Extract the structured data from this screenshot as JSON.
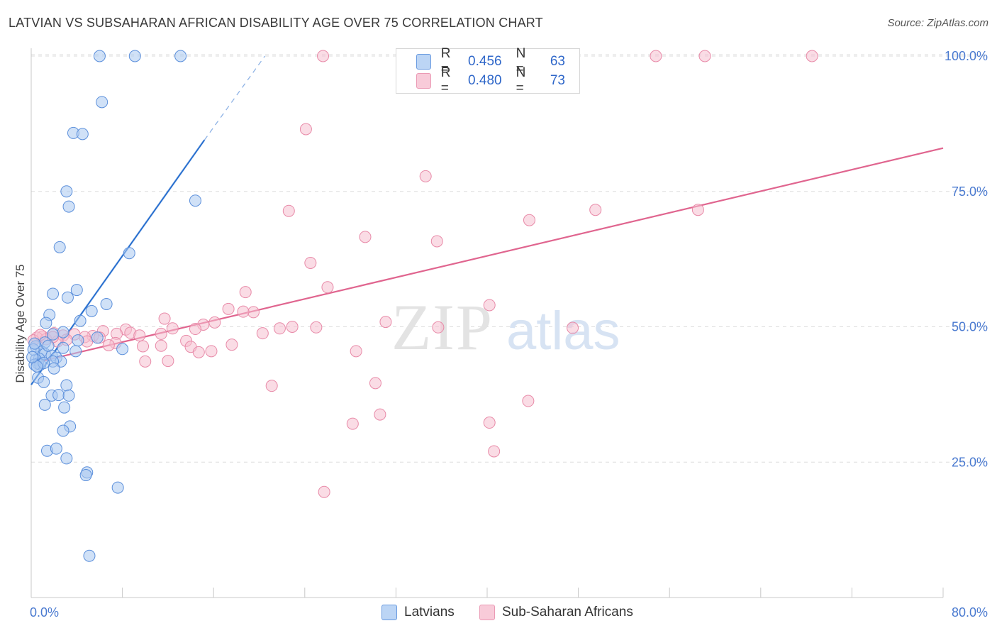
{
  "header": {
    "title": "LATVIAN VS SUBSAHARAN AFRICAN DISABILITY AGE OVER 75 CORRELATION CHART",
    "source": "Source: ZipAtlas.com"
  },
  "watermark": {
    "zip": "ZIP",
    "atlas": "atlas"
  },
  "legend_stats": [
    {
      "r_label": "R =",
      "r_value": "0.456",
      "n_label": "N =",
      "n_value": "63"
    },
    {
      "r_label": "R =",
      "r_value": "0.480",
      "n_label": "N =",
      "n_value": "73"
    }
  ],
  "bottom_legend": [
    "Latvians",
    "Sub-Saharan Africans"
  ],
  "colors": {
    "latvian_fill": "#a9c8f0",
    "latvian_stroke": "#5b8fdb",
    "latvian_line": "#2e73d0",
    "african_fill": "#f6bfd0",
    "african_stroke": "#e88aa8",
    "african_line": "#e0658f",
    "tick_text": "#4a7ad0",
    "grid": "#dedede"
  },
  "chart_data": {
    "type": "scatter",
    "title": "LATVIAN VS SUBSAHARAN AFRICAN DISABILITY AGE OVER 75 CORRELATION CHART",
    "xlabel": "",
    "ylabel": "Disability Age Over 75",
    "xlim": [
      0,
      80
    ],
    "ylim": [
      0,
      102
    ],
    "x_tick_labels": [
      "0.0%",
      "80.0%"
    ],
    "y_ticks": [
      25,
      50,
      75,
      100
    ],
    "y_tick_labels": [
      "25.0%",
      "50.0%",
      "75.0%",
      "100.0%"
    ],
    "grid": "horizontal dashed",
    "legend_position": "top-center",
    "series": [
      {
        "name": "Latvians",
        "trend": {
          "x": [
            0.0,
            15.2
          ],
          "y": [
            39.3,
            84.5
          ],
          "dash_to": [
            20.5,
            100.0
          ]
        },
        "points": [
          [
            6.0,
            100
          ],
          [
            9.1,
            100
          ],
          [
            13.1,
            100
          ],
          [
            6.2,
            91.5
          ],
          [
            3.7,
            85.8
          ],
          [
            4.5,
            85.6
          ],
          [
            3.1,
            75.0
          ],
          [
            3.3,
            72.2
          ],
          [
            14.4,
            73.3
          ],
          [
            2.5,
            64.7
          ],
          [
            8.6,
            63.6
          ],
          [
            4.0,
            56.8
          ],
          [
            1.9,
            56.1
          ],
          [
            3.2,
            55.4
          ],
          [
            6.6,
            54.2
          ],
          [
            1.6,
            52.2
          ],
          [
            5.3,
            52.9
          ],
          [
            4.3,
            51.1
          ],
          [
            1.3,
            50.7
          ],
          [
            2.8,
            49.0
          ],
          [
            1.9,
            48.6
          ],
          [
            5.8,
            48.0
          ],
          [
            4.1,
            47.5
          ],
          [
            1.2,
            47.1
          ],
          [
            0.4,
            46.4
          ],
          [
            2.8,
            46.1
          ],
          [
            8.0,
            45.9
          ],
          [
            3.9,
            45.5
          ],
          [
            0.9,
            45.4
          ],
          [
            1.2,
            45.0
          ],
          [
            1.8,
            44.7
          ],
          [
            2.2,
            44.3
          ],
          [
            0.7,
            44.1
          ],
          [
            0.4,
            43.9
          ],
          [
            2.6,
            43.6
          ],
          [
            1.9,
            43.6
          ],
          [
            0.6,
            43.2
          ],
          [
            0.8,
            43.0
          ],
          [
            0.3,
            43.0
          ],
          [
            1.1,
            43.3
          ],
          [
            0.5,
            42.7
          ],
          [
            2.0,
            42.3
          ],
          [
            0.6,
            40.6
          ],
          [
            1.1,
            39.8
          ],
          [
            3.1,
            39.2
          ],
          [
            1.8,
            37.3
          ],
          [
            2.4,
            37.4
          ],
          [
            3.3,
            37.3
          ],
          [
            1.2,
            35.6
          ],
          [
            2.9,
            35.1
          ],
          [
            3.4,
            31.6
          ],
          [
            2.8,
            30.8
          ],
          [
            1.4,
            27.1
          ],
          [
            2.2,
            27.5
          ],
          [
            3.1,
            25.7
          ],
          [
            4.9,
            23.1
          ],
          [
            4.8,
            22.6
          ],
          [
            7.6,
            20.3
          ],
          [
            5.1,
            7.7
          ],
          [
            0.2,
            45.8
          ],
          [
            0.1,
            44.4
          ],
          [
            0.3,
            46.9
          ],
          [
            1.5,
            46.5
          ]
        ]
      },
      {
        "name": "Sub-Saharan Africans",
        "trend": {
          "x": [
            0.0,
            80.0
          ],
          "y": [
            43.2,
            83.0
          ]
        },
        "points": [
          [
            25.6,
            100
          ],
          [
            32.9,
            100
          ],
          [
            54.8,
            100
          ],
          [
            59.1,
            100
          ],
          [
            68.5,
            100
          ],
          [
            24.1,
            86.5
          ],
          [
            34.6,
            77.8
          ],
          [
            22.6,
            71.4
          ],
          [
            49.5,
            71.6
          ],
          [
            58.5,
            71.6
          ],
          [
            43.7,
            69.7
          ],
          [
            29.3,
            66.6
          ],
          [
            35.6,
            65.8
          ],
          [
            24.5,
            61.8
          ],
          [
            26.0,
            57.3
          ],
          [
            18.8,
            56.4
          ],
          [
            40.2,
            54.0
          ],
          [
            17.3,
            53.3
          ],
          [
            19.5,
            52.7
          ],
          [
            18.6,
            52.8
          ],
          [
            11.7,
            51.5
          ],
          [
            31.1,
            50.9
          ],
          [
            16.1,
            50.8
          ],
          [
            15.1,
            50.4
          ],
          [
            12.4,
            49.7
          ],
          [
            14.4,
            49.6
          ],
          [
            21.8,
            49.7
          ],
          [
            22.9,
            50.0
          ],
          [
            25.0,
            49.9
          ],
          [
            35.7,
            49.9
          ],
          [
            47.5,
            49.8
          ],
          [
            8.3,
            49.5
          ],
          [
            6.3,
            49.2
          ],
          [
            8.7,
            48.9
          ],
          [
            7.5,
            48.7
          ],
          [
            9.5,
            48.4
          ],
          [
            11.4,
            48.7
          ],
          [
            3.8,
            48.6
          ],
          [
            20.3,
            48.8
          ],
          [
            5.4,
            48.3
          ],
          [
            4.7,
            48.1
          ],
          [
            6.0,
            48.0
          ],
          [
            2.0,
            48.8
          ],
          [
            2.8,
            48.4
          ],
          [
            1.0,
            48.2
          ],
          [
            0.5,
            48.0
          ],
          [
            1.3,
            47.7
          ],
          [
            3.1,
            47.6
          ],
          [
            4.9,
            47.3
          ],
          [
            7.4,
            47.0
          ],
          [
            13.6,
            47.4
          ],
          [
            6.8,
            46.6
          ],
          [
            11.4,
            46.5
          ],
          [
            17.6,
            46.7
          ],
          [
            14.0,
            46.3
          ],
          [
            9.8,
            46.4
          ],
          [
            15.8,
            45.5
          ],
          [
            28.5,
            45.5
          ],
          [
            14.7,
            45.3
          ],
          [
            12.0,
            43.7
          ],
          [
            10.0,
            43.6
          ],
          [
            21.1,
            39.1
          ],
          [
            30.2,
            39.6
          ],
          [
            43.6,
            36.3
          ],
          [
            30.6,
            33.8
          ],
          [
            28.2,
            32.1
          ],
          [
            40.2,
            32.3
          ],
          [
            40.6,
            27.0
          ],
          [
            25.7,
            19.5
          ],
          [
            0.2,
            47.5
          ],
          [
            0.8,
            48.5
          ],
          [
            2.3,
            47.3
          ],
          [
            1.9,
            48.1
          ]
        ]
      }
    ]
  }
}
